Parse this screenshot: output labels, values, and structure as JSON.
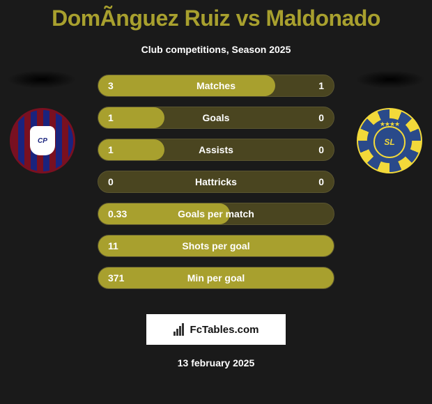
{
  "title": "DomÃ­nguez Ruiz vs Maldonado",
  "subtitle": "Club competitions, Season 2025",
  "date": "13 february 2025",
  "branding_text": "FcTables.com",
  "colors": {
    "background": "#1a1a1a",
    "accent": "#a8a02e",
    "row_bg": "#4a4520",
    "row_fill": "#a8a02e",
    "text": "#ffffff",
    "title_color": "#a8a02e"
  },
  "left_crest": {
    "name": "cerro-porteno-style",
    "primary": "#1a237e",
    "secondary": "#7a1020",
    "badge_text": "CP"
  },
  "right_crest": {
    "name": "sportivo-luqueno-style",
    "primary": "#2a4a8a",
    "secondary": "#f2d93a",
    "badge_text": "SL",
    "stars": "★★★★"
  },
  "rows": [
    {
      "label": "Matches",
      "left": "3",
      "right": "1",
      "fill_pct": 75
    },
    {
      "label": "Goals",
      "left": "1",
      "right": "0",
      "fill_pct": 28
    },
    {
      "label": "Assists",
      "left": "1",
      "right": "0",
      "fill_pct": 28
    },
    {
      "label": "Hattricks",
      "left": "0",
      "right": "0",
      "fill_pct": 0
    },
    {
      "label": "Goals per match",
      "left": "0.33",
      "right": "",
      "fill_pct": 56
    },
    {
      "label": "Shots per goal",
      "left": "11",
      "right": "",
      "fill_pct": 100
    },
    {
      "label": "Min per goal",
      "left": "371",
      "right": "",
      "fill_pct": 100
    }
  ]
}
